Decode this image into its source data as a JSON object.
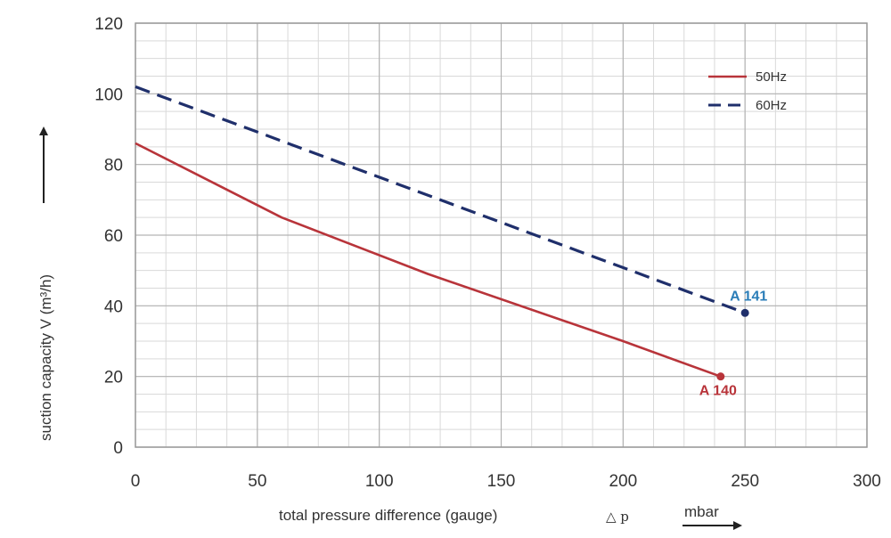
{
  "chart_data": {
    "type": "line",
    "xlabel": "total pressure difference (gauge)",
    "xlabel_symbol": "△ p",
    "xunit": "mbar",
    "ylabel": "suction capacity V (m³/h)",
    "xlim": [
      0,
      300
    ],
    "ylim": [
      0,
      120
    ],
    "x_ticks": [
      0,
      50,
      100,
      150,
      200,
      250,
      300
    ],
    "y_ticks": [
      0,
      20,
      40,
      60,
      80,
      100,
      120
    ],
    "grid": true,
    "legend_position": "top-right",
    "series": [
      {
        "name": "50Hz",
        "color": "#b8343a",
        "style": "solid",
        "x": [
          0,
          60,
          120,
          200,
          240
        ],
        "y": [
          86,
          65,
          49,
          30,
          20
        ],
        "end_label": "A 140",
        "end_label_color": "#b8343a"
      },
      {
        "name": "60Hz",
        "color": "#1f2f6b",
        "style": "dashed",
        "x": [
          0,
          250
        ],
        "y": [
          102,
          38
        ],
        "end_label": "A 141",
        "end_label_color": "#2a7db8"
      }
    ]
  }
}
